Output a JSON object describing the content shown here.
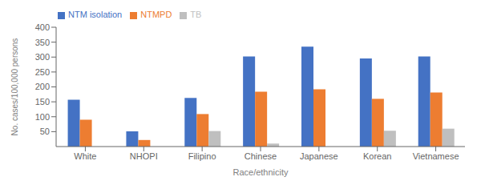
{
  "chart_data": {
    "type": "bar",
    "categories": [
      "White",
      "NHOPI",
      "Filipino",
      "Chinese",
      "Japanese",
      "Korean",
      "Vietnamese"
    ],
    "series": [
      {
        "name": "NTM isolation",
        "color": "#4472C4",
        "values": [
          157,
          51,
          163,
          302,
          335,
          295,
          302
        ]
      },
      {
        "name": "NTMPD",
        "color": "#ED7D31",
        "values": [
          90,
          22,
          109,
          184,
          192,
          160,
          181
        ]
      },
      {
        "name": "TB",
        "color": "#BFBFBF",
        "values": [
          0,
          0,
          52,
          10,
          0,
          53,
          60
        ]
      }
    ],
    "xlabel": "Race/ethnicity",
    "ylabel": "No. cases/100,000 persons",
    "ylim": [
      0,
      400
    ],
    "yticks": [
      50,
      100,
      150,
      200,
      250,
      300,
      350,
      400
    ],
    "grid": false,
    "legend": "upper left"
  }
}
